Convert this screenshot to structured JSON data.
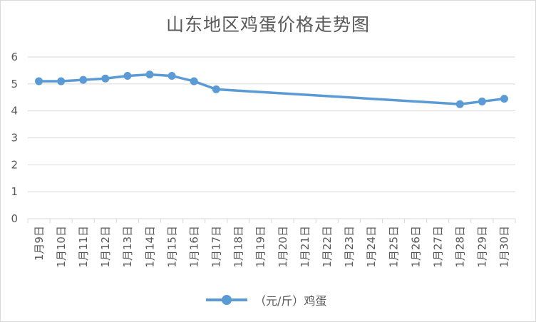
{
  "chart_data": {
    "type": "line",
    "title": "山东地区鸡蛋价格走势图",
    "xlabel": "",
    "ylabel": "",
    "categories": [
      "1月9日",
      "1月10日",
      "1月11日",
      "1月12日",
      "1月13日",
      "1月14日",
      "1月15日",
      "1月16日",
      "1月17日",
      "1月18日",
      "1月19日",
      "1月20日",
      "1月21日",
      "1月22日",
      "1月23日",
      "1月24日",
      "1月25日",
      "1月26日",
      "1月27日",
      "1月28日",
      "1月29日",
      "1月30日"
    ],
    "series": [
      {
        "name": "（元/斤）鸡蛋",
        "color": "#5b9bd5",
        "values": [
          5.1,
          5.1,
          5.15,
          5.2,
          5.3,
          5.35,
          5.3,
          5.1,
          4.8,
          null,
          null,
          null,
          null,
          null,
          null,
          null,
          null,
          null,
          null,
          4.25,
          4.35,
          4.45
        ]
      }
    ],
    "ylim": [
      0,
      6
    ],
    "yticks": [
      0,
      1,
      2,
      3,
      4,
      5,
      6
    ],
    "grid": true,
    "legend_position": "bottom"
  }
}
